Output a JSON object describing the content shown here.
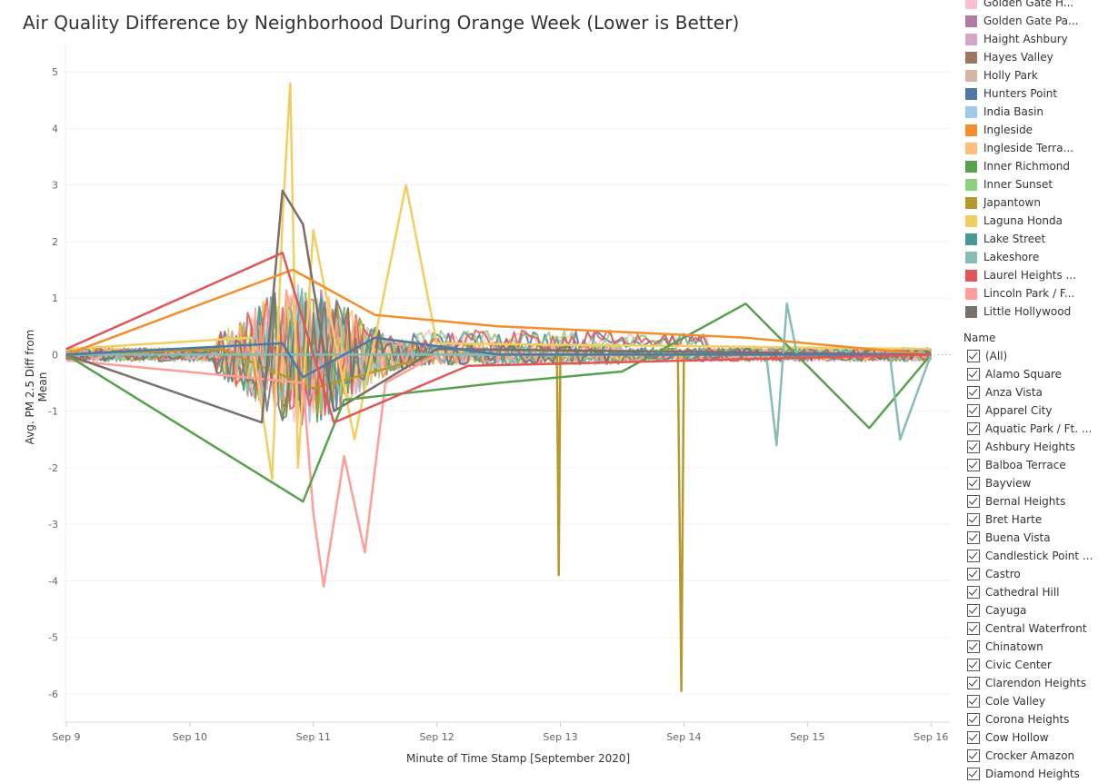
{
  "title": "Air Quality Difference by Neighborhood During Orange Week (Lower is Better)",
  "chart_data": {
    "type": "line",
    "xlabel": "Minute of Time Stamp [September 2020]",
    "ylabel": "Avg. PM 2.5 Diff from Mean",
    "x_ticks": [
      "Sep 9",
      "Sep 10",
      "Sep 11",
      "Sep 12",
      "Sep 13",
      "Sep 14",
      "Sep 15",
      "Sep 16"
    ],
    "x_range": [
      "2020-09-08T23:50",
      "2020-09-16T03:40"
    ],
    "ylim": [
      -6.5,
      5.5
    ],
    "y_ticks": [
      5,
      4,
      3,
      2,
      1,
      0,
      -1,
      -2,
      -3,
      -4,
      -5,
      -6
    ],
    "grid": "horizontal",
    "zero_line": "dotted",
    "series": [
      {
        "name": "Japantown",
        "color": "#b6992d",
        "points": [
          [
            "2020-09-09T00:00",
            0.0
          ],
          [
            "2020-09-10T06:00",
            0.1
          ],
          [
            "2020-09-11T00:00",
            -0.6
          ],
          [
            "2020-09-12T00:00",
            0.0
          ],
          [
            "2020-09-12T23:20",
            0.0
          ],
          [
            "2020-09-12T23:40",
            -3.9
          ],
          [
            "2020-09-13T00:00",
            0.0
          ],
          [
            "2020-09-13T22:50",
            0.0
          ],
          [
            "2020-09-13T23:30",
            -5.95
          ],
          [
            "2020-09-14T00:00",
            0.0
          ],
          [
            "2020-09-16T00:00",
            0.0
          ]
        ]
      },
      {
        "name": "Laguna Honda",
        "color": "#f1ce63",
        "points": [
          [
            "2020-09-09T00:00",
            0.1
          ],
          [
            "2020-09-10T12:00",
            0.3
          ],
          [
            "2020-09-10T16:00",
            -2.2
          ],
          [
            "2020-09-10T18:00",
            2.4
          ],
          [
            "2020-09-10T19:30",
            4.8
          ],
          [
            "2020-09-10T21:00",
            -2.0
          ],
          [
            "2020-09-11T00:00",
            2.2
          ],
          [
            "2020-09-11T08:00",
            -1.5
          ],
          [
            "2020-09-11T18:00",
            3.0
          ],
          [
            "2020-09-12T00:00",
            0.2
          ],
          [
            "2020-09-16T00:00",
            0.1
          ]
        ]
      },
      {
        "name": "Lincoln Park / F...",
        "color": "#ff9d9a",
        "points": [
          [
            "2020-09-09T00:00",
            -0.1
          ],
          [
            "2020-09-10T22:00",
            -0.5
          ],
          [
            "2020-09-11T00:00",
            -2.8
          ],
          [
            "2020-09-11T02:00",
            -4.1
          ],
          [
            "2020-09-11T06:00",
            -1.8
          ],
          [
            "2020-09-11T10:00",
            -3.5
          ],
          [
            "2020-09-11T14:00",
            -0.5
          ],
          [
            "2020-09-12T00:00",
            0.0
          ],
          [
            "2020-09-16T00:00",
            0.0
          ]
        ]
      },
      {
        "name": "Little Hollywood",
        "color": "#79706e",
        "points": [
          [
            "2020-09-09T00:00",
            0.0
          ],
          [
            "2020-09-10T14:00",
            -1.2
          ],
          [
            "2020-09-10T18:00",
            2.9
          ],
          [
            "2020-09-10T22:00",
            2.3
          ],
          [
            "2020-09-11T04:00",
            -1.0
          ],
          [
            "2020-09-12T00:00",
            0.1
          ],
          [
            "2020-09-16T00:00",
            0.0
          ]
        ]
      },
      {
        "name": "Inner Richmond",
        "color": "#59a14f",
        "points": [
          [
            "2020-09-09T00:00",
            0.0
          ],
          [
            "2020-09-10T22:00",
            -2.6
          ],
          [
            "2020-09-11T06:00",
            -0.8
          ],
          [
            "2020-09-12T12:00",
            -0.5
          ],
          [
            "2020-09-13T12:00",
            -0.3
          ],
          [
            "2020-09-14T12:00",
            0.9
          ],
          [
            "2020-09-15T12:00",
            -1.3
          ],
          [
            "2020-09-16T00:00",
            0.0
          ]
        ]
      },
      {
        "name": "Lakeshore",
        "color": "#86bcb6",
        "points": [
          [
            "2020-09-09T00:00",
            0.0
          ],
          [
            "2020-09-14T16:00",
            0.0
          ],
          [
            "2020-09-14T18:00",
            -1.6
          ],
          [
            "2020-09-14T20:00",
            0.9
          ],
          [
            "2020-09-14T22:00",
            0.0
          ],
          [
            "2020-09-15T16:00",
            0.0
          ],
          [
            "2020-09-15T18:00",
            -1.5
          ],
          [
            "2020-09-16T00:00",
            0.0
          ]
        ]
      },
      {
        "name": "Ingleside",
        "color": "#f28e2b",
        "points": [
          [
            "2020-09-09T00:00",
            0.0
          ],
          [
            "2020-09-10T20:00",
            1.5
          ],
          [
            "2020-09-11T12:00",
            0.7
          ],
          [
            "2020-09-12T12:00",
            0.5
          ],
          [
            "2020-09-13T12:00",
            0.4
          ],
          [
            "2020-09-14T12:00",
            0.3
          ],
          [
            "2020-09-16T00:00",
            0.0
          ]
        ]
      },
      {
        "name": "Hunters Point",
        "color": "#4e79a7",
        "points": [
          [
            "2020-09-09T00:00",
            0.0
          ],
          [
            "2020-09-10T18:00",
            0.2
          ],
          [
            "2020-09-10T22:00",
            -0.4
          ],
          [
            "2020-09-11T12:00",
            0.3
          ],
          [
            "2020-09-12T12:00",
            0.0
          ],
          [
            "2020-09-16T00:00",
            0.0
          ]
        ]
      },
      {
        "name": "Laurel Heights ...",
        "color": "#e15759",
        "points": [
          [
            "2020-09-09T00:00",
            0.1
          ],
          [
            "2020-09-10T18:00",
            1.8
          ],
          [
            "2020-09-11T04:00",
            -1.2
          ],
          [
            "2020-09-12T06:00",
            -0.2
          ],
          [
            "2020-09-16T00:00",
            0.0
          ]
        ]
      }
    ]
  },
  "legend": {
    "items": [
      {
        "label": "Golden Gate H...",
        "color": "#fabfd2"
      },
      {
        "label": "Golden Gate Pa...",
        "color": "#b07aa1"
      },
      {
        "label": "Haight Ashbury",
        "color": "#d4a6c8"
      },
      {
        "label": "Hayes Valley",
        "color": "#9d7660"
      },
      {
        "label": "Holly Park",
        "color": "#d7b5a6"
      },
      {
        "label": "Hunters Point",
        "color": "#4e79a7"
      },
      {
        "label": "India Basin",
        "color": "#a0cbe8"
      },
      {
        "label": "Ingleside",
        "color": "#f28e2b"
      },
      {
        "label": "Ingleside Terra...",
        "color": "#ffbe7d"
      },
      {
        "label": "Inner Richmond",
        "color": "#59a14f"
      },
      {
        "label": "Inner Sunset",
        "color": "#8cd17d"
      },
      {
        "label": "Japantown",
        "color": "#b6992d"
      },
      {
        "label": "Laguna Honda",
        "color": "#f1ce63"
      },
      {
        "label": "Lake Street",
        "color": "#499894"
      },
      {
        "label": "Lakeshore",
        "color": "#86bcb6"
      },
      {
        "label": "Laurel Heights ...",
        "color": "#e15759"
      },
      {
        "label": "Lincoln Park / F...",
        "color": "#ff9d9a"
      },
      {
        "label": "Little Hollywood",
        "color": "#79706e"
      }
    ]
  },
  "filter": {
    "title": "Name",
    "items": [
      "(All)",
      "Alamo Square",
      "Anza Vista",
      "Apparel City",
      "Aquatic Park / Ft. ...",
      "Ashbury Heights",
      "Balboa Terrace",
      "Bayview",
      "Bernal Heights",
      "Bret Harte",
      "Buena Vista",
      "Candlestick Point ...",
      "Castro",
      "Cathedral Hill",
      "Cayuga",
      "Central Waterfront",
      "Chinatown",
      "Civic Center",
      "Clarendon Heights",
      "Cole Valley",
      "Corona Heights",
      "Cow Hollow",
      "Crocker Amazon",
      "Diamond Heights"
    ]
  }
}
